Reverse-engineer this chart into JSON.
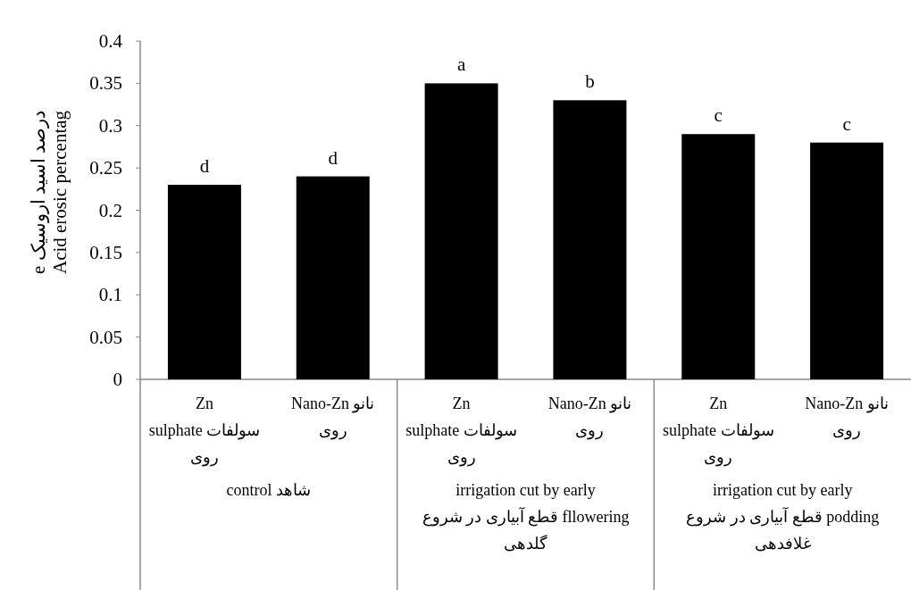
{
  "chart_data": {
    "type": "bar",
    "ylabel": "e درصد اسید اروسیک\nAcid erosic percentag",
    "categories": [
      "Zn\nsulphate سولفات\nروی",
      "Nano-Zn نانو\nروی",
      "Zn\nsulphate سولفات\nروی",
      "Nano-Zn نانو\nروی",
      "Zn\nsulphate سولفات\nروی",
      "Nano-Zn نانو\nروی"
    ],
    "values": [
      0.23,
      0.24,
      0.35,
      0.33,
      0.29,
      0.28
    ],
    "value_labels": [
      "d",
      "d",
      "a",
      "b",
      "c",
      "c"
    ],
    "color": "#000000",
    "ylim": [
      0,
      0.4
    ],
    "yticks": [
      0,
      0.05,
      0.1,
      0.15,
      0.2,
      0.25,
      0.3,
      0.35,
      0.4
    ],
    "annotations": [
      "control شاهد",
      "irrigation cut by early\nقطع آبیاری در شروع fllowering\nگلدهی",
      "irrigation cut by early\nقطع آبیاری در شروع podding\nغلافدهی"
    ],
    "grid": false
  }
}
